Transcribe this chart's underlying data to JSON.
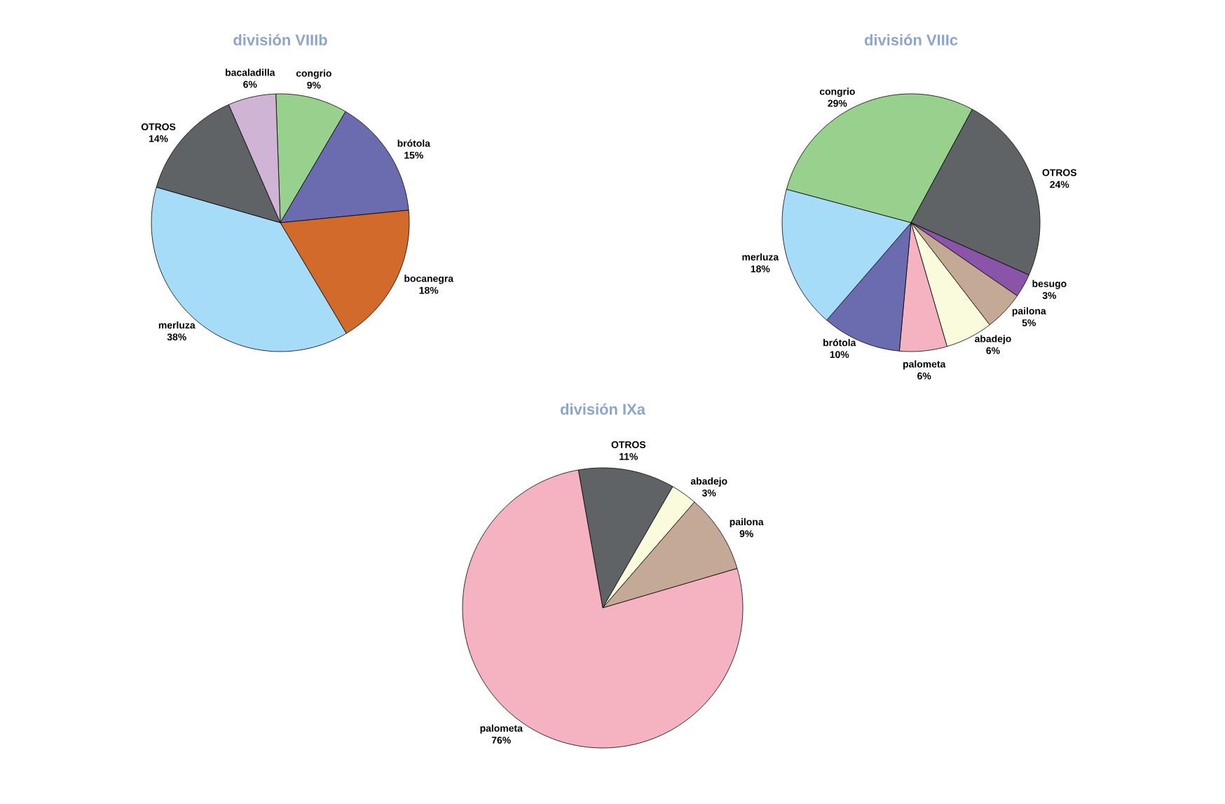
{
  "chart_data": [
    {
      "type": "pie",
      "title": "división VIIIb",
      "categories": [
        "congrio",
        "brótola",
        "bocanegra",
        "merluza",
        "OTROS",
        "bacaladilla"
      ],
      "values": [
        9,
        15,
        18,
        38,
        14,
        6
      ],
      "value_labels": [
        "9%",
        "15%",
        "18%",
        "38%",
        "14%",
        "6%"
      ],
      "colors": [
        "#98d08e",
        "#6b6bb0",
        "#d26a2c",
        "#a6dcf7",
        "#5f6366",
        "#d0b4d6"
      ]
    },
    {
      "type": "pie",
      "title": "división VIIIc",
      "categories": [
        "congrio",
        "OTROS",
        "besugo",
        "pailona",
        "abadejo",
        "palometa",
        "brótola",
        "merluza"
      ],
      "values": [
        29,
        24,
        3,
        5,
        6,
        6,
        10,
        18
      ],
      "value_labels": [
        "29%",
        "24%",
        "3%",
        "5%",
        "6%",
        "6%",
        "10%",
        "18%"
      ],
      "colors": [
        "#98d08e",
        "#5f6366",
        "#8a55a8",
        "#c4aa96",
        "#fafadc",
        "#f5b3c2",
        "#6b6bb0",
        "#a6dcf7"
      ]
    },
    {
      "type": "pie",
      "title": "división IXa",
      "categories": [
        "OTROS",
        "abadejo",
        "pailona",
        "palometa"
      ],
      "values": [
        11,
        3,
        9,
        76
      ],
      "value_labels": [
        "11%",
        "3%",
        "9%",
        "76%"
      ],
      "colors": [
        "#5f6366",
        "#fafadc",
        "#c4aa96",
        "#f5b3c2"
      ]
    }
  ]
}
